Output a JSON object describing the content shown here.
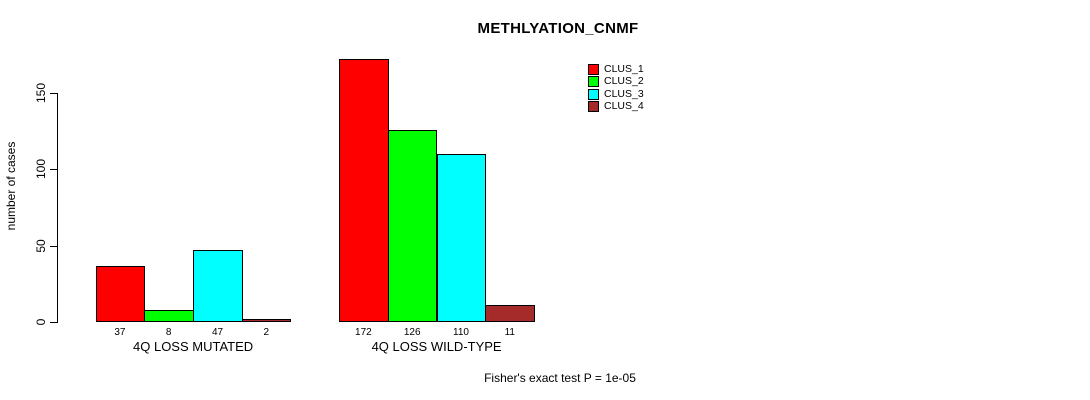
{
  "chart_data": {
    "type": "bar",
    "title": "METHLYATION_CNMF",
    "ylabel": "number of cases",
    "xlabel": "",
    "categories": [
      "4Q LOSS MUTATED",
      "4Q LOSS WILD-TYPE"
    ],
    "series": [
      {
        "name": "CLUS_1",
        "color": "#ff0000",
        "values": [
          37,
          172
        ]
      },
      {
        "name": "CLUS_2",
        "color": "#00ff00",
        "values": [
          8,
          126
        ]
      },
      {
        "name": "CLUS_3",
        "color": "#00ffff",
        "values": [
          47,
          110
        ]
      },
      {
        "name": "CLUS_4",
        "color": "#a52a2a",
        "values": [
          2,
          11
        ]
      }
    ],
    "yticks": [
      0,
      50,
      100,
      150
    ],
    "ylim": [
      0,
      172
    ],
    "grid": false,
    "legend_position": "top-right",
    "legend_labels": [
      "CLUS_1",
      "CLUS_2",
      "CLUS_3",
      "CLUS_4"
    ],
    "bar_value_labels": [
      [
        "37",
        "8",
        "47",
        "2"
      ],
      [
        "172",
        "126",
        "110",
        "11"
      ]
    ],
    "annotation": "Fisher's exact test P = 1e-05"
  }
}
